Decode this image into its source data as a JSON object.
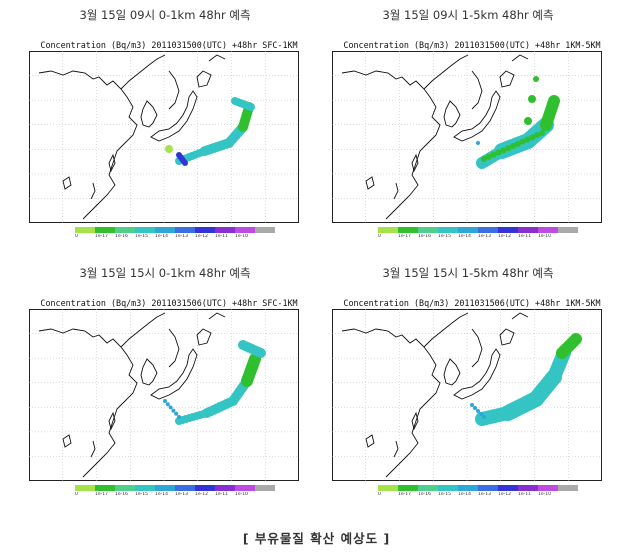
{
  "panels": [
    {
      "title": "3월 15일 09시 0-1km 48hr 예측",
      "header": "Concentration (Bq/m3) 2011031500(UTC) +48hr SFC-1KM",
      "plume": "a"
    },
    {
      "title": "3월 15일 09시 1-5km 48hr 예측",
      "header": "Concentration (Bq/m3) 2011031500(UTC) +48hr 1KM-5KM",
      "plume": "b"
    },
    {
      "title": "3월 15일 15시 0-1km 48hr 예측",
      "header": "Concentration (Bq/m3) 2011031506(UTC) +48hr SFC-1KM",
      "plume": "c"
    },
    {
      "title": "3월 15일 15시 1-5km 48hr 예측",
      "header": "Concentration (Bq/m3) 2011031506(UTC) +48hr 1KM-5KM",
      "plume": "d"
    }
  ],
  "colorbar": {
    "colors": [
      "#a6e34a",
      "#2fbf2f",
      "#4fd08a",
      "#34c4c4",
      "#2ea7d6",
      "#3a6fe0",
      "#3434d6",
      "#8a2fcf",
      "#c04be0",
      "#a9a9a9"
    ],
    "labels": [
      "0",
      "1e-17",
      "1e-16",
      "1e-15",
      "1e-14",
      "1e-13",
      "1e-12",
      "1e-11",
      "1e-10",
      ""
    ]
  },
  "caption": "[ 부유물질 확산 예상도 ]"
}
